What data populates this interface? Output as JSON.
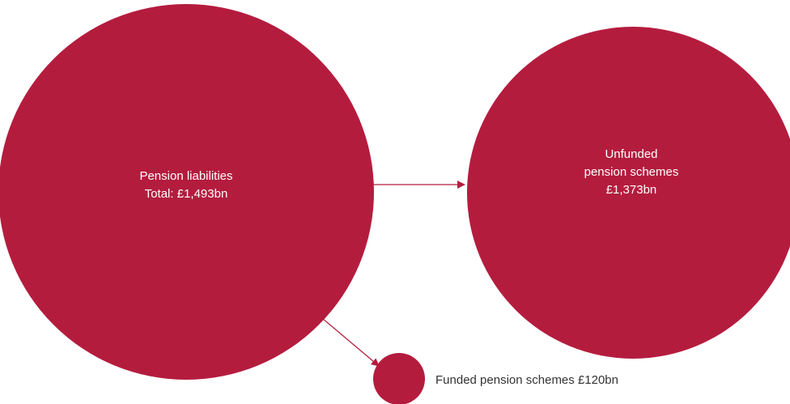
{
  "nodes": [
    {
      "lines": [
        "Pension liabilities",
        "Total: £1,493bn"
      ]
    },
    {
      "lines": [
        "Unfunded",
        "pension schemes",
        "£1,373bn"
      ]
    },
    {
      "lines": [
        "Funded pension schemes £120bn"
      ]
    }
  ]
}
